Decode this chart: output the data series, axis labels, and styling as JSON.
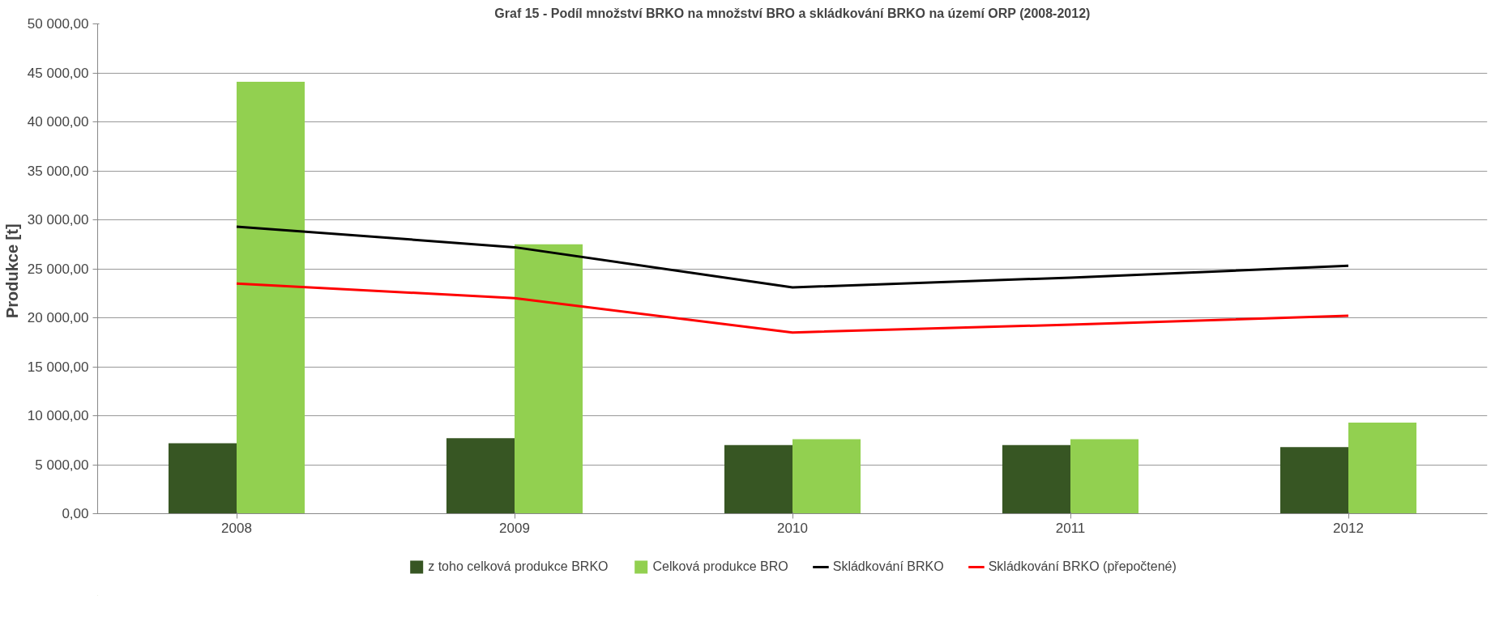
{
  "chart_data": {
    "type": "bar",
    "title": "Graf 15 - Podíl množství BRKO na množství BRO a skládkování BRKO na území ORP (2008-2012)",
    "ylabel": "Produkce  [t]",
    "categories": [
      "2008",
      "2009",
      "2010",
      "2011",
      "2012"
    ],
    "series": [
      {
        "name": "z toho celková produkce BRKO",
        "color": "#375623",
        "values": [
          7200,
          7700,
          7000,
          7000,
          6800
        ]
      },
      {
        "name": "Celková produkce BRO",
        "color": "#92d050",
        "values": [
          44100,
          27500,
          7600,
          7600,
          9300
        ]
      },
      {
        "name": "Skládkování BRKO",
        "type": "line",
        "color": "#000000",
        "values": [
          29300,
          27200,
          23100,
          24100,
          25300
        ]
      },
      {
        "name": "Skládkování BRKO (přepočtené)",
        "type": "line",
        "color": "#ff0000",
        "values": [
          23500,
          22000,
          18500,
          19300,
          20200
        ]
      }
    ],
    "ylim": [
      0,
      50000
    ],
    "yticks": [
      {
        "value": 0,
        "label": "0,00"
      },
      {
        "value": 5000,
        "label": "5 000,00"
      },
      {
        "value": 10000,
        "label": "10 000,00"
      },
      {
        "value": 15000,
        "label": "15 000,00"
      },
      {
        "value": 20000,
        "label": "20 000,00"
      },
      {
        "value": 25000,
        "label": "25 000,00"
      },
      {
        "value": 30000,
        "label": "30 000,00"
      },
      {
        "value": 35000,
        "label": "35 000,00"
      },
      {
        "value": 40000,
        "label": "40 000,00"
      },
      {
        "value": 45000,
        "label": "45 000,00"
      },
      {
        "value": 50000,
        "label": "50 000,00"
      }
    ],
    "grid": "y",
    "legend": "bottom"
  }
}
